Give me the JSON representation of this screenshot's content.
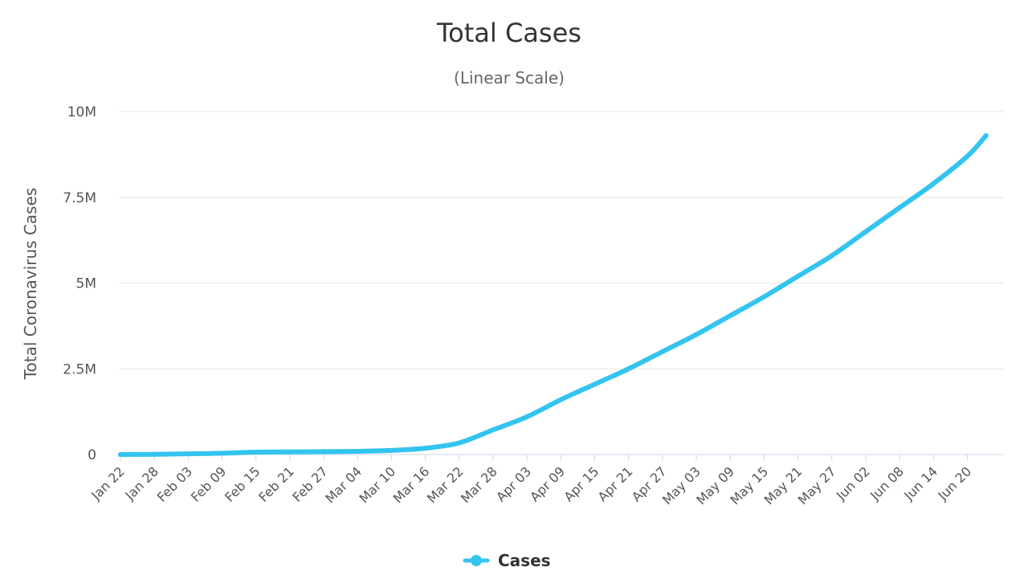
{
  "chart_data": {
    "type": "line",
    "title": "Total Cases",
    "subtitle": "(Linear Scale)",
    "xlabel": "",
    "ylabel": "Total Coronavirus Cases",
    "ylim": [
      0,
      10000000
    ],
    "yticks": [
      0,
      2500000,
      5000000,
      7500000,
      10000000
    ],
    "ytick_labels": [
      "0",
      "2.5M",
      "5M",
      "7.5M",
      "10M"
    ],
    "xtick_labels": [
      "Jan 22",
      "Jan 28",
      "Feb 03",
      "Feb 09",
      "Feb 15",
      "Feb 21",
      "Feb 27",
      "Mar 04",
      "Mar 10",
      "Mar 16",
      "Mar 22",
      "Mar 28",
      "Apr 03",
      "Apr 09",
      "Apr 15",
      "Apr 21",
      "Apr 27",
      "May 03",
      "May 09",
      "May 15",
      "May 21",
      "May 27",
      "Jun 02",
      "Jun 08",
      "Jun 14",
      "Jun 20"
    ],
    "grid": true,
    "legend_position": "bottom-center",
    "series": [
      {
        "name": "Cases",
        "color": "#33c4ef",
        "x": [
          "Jan 22",
          "Jan 28",
          "Feb 03",
          "Feb 09",
          "Feb 15",
          "Feb 21",
          "Feb 27",
          "Mar 04",
          "Mar 10",
          "Mar 16",
          "Mar 22",
          "Mar 28",
          "Apr 03",
          "Apr 09",
          "Apr 15",
          "Apr 21",
          "Apr 27",
          "May 03",
          "May 09",
          "May 15",
          "May 21",
          "May 27",
          "Jun 02",
          "Jun 08",
          "Jun 14",
          "Jun 20",
          "Jun 23"
        ],
        "values": [
          600,
          5600,
          20000,
          37000,
          69000,
          77000,
          84000,
          95000,
          120000,
          185000,
          340000,
          720000,
          1100000,
          1600000,
          2050000,
          2500000,
          3000000,
          3500000,
          4050000,
          4600000,
          5200000,
          5800000,
          6500000,
          7200000,
          7900000,
          8700000,
          9300000
        ]
      }
    ]
  }
}
